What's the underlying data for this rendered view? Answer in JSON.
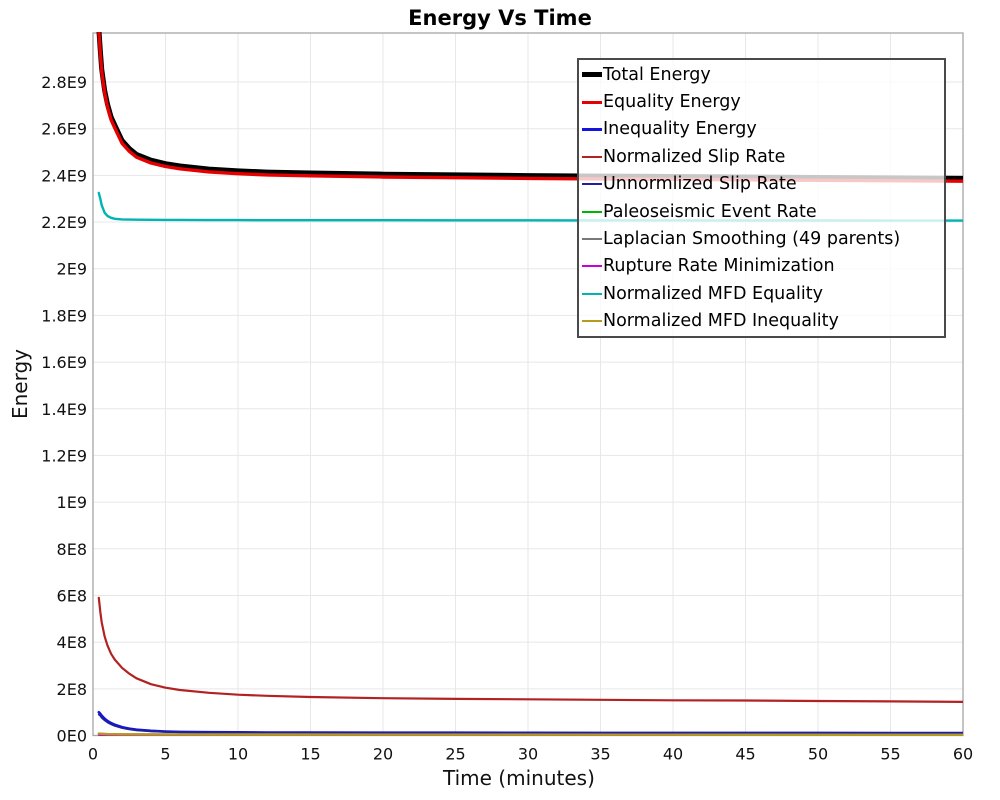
{
  "chart_data": {
    "type": "line",
    "title": "Energy Vs Time",
    "xlabel": "Time (minutes)",
    "ylabel": "Energy",
    "xlim": [
      0,
      60
    ],
    "ylim": [
      0,
      3010000000.0
    ],
    "grid": true,
    "grid_color": "#e7e7e7",
    "frame_color": "#a6a6a6",
    "legend_position": "top-right",
    "legend_border_color": "#4a4a4a",
    "xticks": [
      0,
      5,
      10,
      15,
      20,
      25,
      30,
      35,
      40,
      45,
      50,
      55,
      60
    ],
    "yticks": [
      {
        "v": 0,
        "label": "0E0"
      },
      {
        "v": 200000000.0,
        "label": "2E8"
      },
      {
        "v": 400000000.0,
        "label": "4E8"
      },
      {
        "v": 600000000.0,
        "label": "6E8"
      },
      {
        "v": 800000000.0,
        "label": "8E8"
      },
      {
        "v": 1000000000.0,
        "label": "1E9"
      },
      {
        "v": 1200000000.0,
        "label": "1.2E9"
      },
      {
        "v": 1400000000.0,
        "label": "1.4E9"
      },
      {
        "v": 1600000000.0,
        "label": "1.6E9"
      },
      {
        "v": 1800000000.0,
        "label": "1.8E9"
      },
      {
        "v": 2000000000.0,
        "label": "2E9"
      },
      {
        "v": 2200000000.0,
        "label": "2.2E9"
      },
      {
        "v": 2400000000.0,
        "label": "2.4E9"
      },
      {
        "v": 2600000000.0,
        "label": "2.6E9"
      },
      {
        "v": 2800000000.0,
        "label": "2.8E9"
      }
    ],
    "series": [
      {
        "name": "Total Energy",
        "color": "#000000",
        "lw": 5,
        "x": [
          0.4,
          0.5,
          0.6,
          0.8,
          1,
          1.25,
          1.5,
          2,
          2.5,
          3,
          4,
          5,
          6,
          8,
          10,
          12,
          15,
          20,
          25,
          30,
          35,
          40,
          45,
          50,
          55,
          60
        ],
        "y": [
          3030000000.0,
          2935000000.0,
          2855000000.0,
          2765000000.0,
          2705000000.0,
          2650000000.0,
          2615000000.0,
          2550000000.0,
          2515000000.0,
          2490000000.0,
          2465000000.0,
          2450000000.0,
          2440000000.0,
          2427000000.0,
          2419000000.0,
          2414000000.0,
          2410000000.0,
          2405000000.0,
          2402000000.0,
          2399000000.0,
          2397000000.0,
          2395000000.0,
          2393000000.0,
          2391000000.0,
          2389000000.0,
          2387000000.0
        ]
      },
      {
        "name": "Equality Energy",
        "color": "#e60000",
        "lw": 3.4,
        "x": [
          0.4,
          0.5,
          0.6,
          0.8,
          1,
          1.25,
          1.5,
          2,
          2.5,
          3,
          4,
          5,
          6,
          8,
          10,
          12,
          15,
          20,
          25,
          30,
          35,
          40,
          45,
          50,
          55,
          60
        ],
        "y": [
          3020000000.0,
          2925000000.0,
          2845000000.0,
          2755000000.0,
          2693000000.0,
          2638000000.0,
          2603000000.0,
          2538000000.0,
          2503000000.0,
          2478000000.0,
          2453000000.0,
          2438000000.0,
          2428000000.0,
          2415000000.0,
          2407000000.0,
          2402000000.0,
          2398000000.0,
          2393000000.0,
          2390000000.0,
          2387000000.0,
          2385000000.0,
          2383000000.0,
          2381000000.0,
          2379000000.0,
          2377000000.0,
          2375000000.0
        ]
      },
      {
        "name": "Inequality Energy",
        "color": "#1414dc",
        "lw": 2.6,
        "x": [
          0.4,
          0.5,
          0.6,
          0.8,
          1,
          1.25,
          1.5,
          2,
          2.5,
          3,
          4,
          5,
          6,
          8,
          10,
          12,
          15,
          20,
          25,
          30,
          35,
          40,
          45,
          50,
          55,
          60
        ],
        "y": [
          100000000.0,
          93000000.0,
          85000000.0,
          72000000.0,
          62000000.0,
          53000000.0,
          46000000.0,
          36000000.0,
          29000000.0,
          25000000.0,
          20000000.0,
          17000000.0,
          15500000.0,
          14000000.0,
          13500000.0,
          13000000.0,
          12500000.0,
          12000000.0,
          11800000.0,
          11500000.0,
          11300000.0,
          11200000.0,
          11100000.0,
          11000000.0,
          10900000.0,
          10800000.0
        ]
      },
      {
        "name": "Normalized Slip Rate",
        "color": "#b22222",
        "lw": 2.2,
        "x": [
          0.4,
          0.5,
          0.6,
          0.8,
          1,
          1.25,
          1.5,
          2,
          2.5,
          3,
          4,
          5,
          6,
          8,
          10,
          12,
          15,
          20,
          25,
          30,
          35,
          40,
          45,
          50,
          55,
          60
        ],
        "y": [
          590000000.0,
          530000000.0,
          485000000.0,
          425000000.0,
          385000000.0,
          350000000.0,
          325000000.0,
          290000000.0,
          265000000.0,
          245000000.0,
          220000000.0,
          205000000.0,
          195000000.0,
          183000000.0,
          175000000.0,
          170000000.0,
          165000000.0,
          160000000.0,
          157000000.0,
          155000000.0,
          153000000.0,
          151000000.0,
          150000000.0,
          148000000.0,
          146000000.0,
          144000000.0
        ]
      },
      {
        "name": "Unnormlized Slip Rate",
        "color": "#20209b",
        "lw": 1.8,
        "x": [
          0.4,
          0.5,
          0.6,
          0.8,
          1,
          1.25,
          1.5,
          2,
          2.5,
          3,
          4,
          5,
          6,
          8,
          10,
          12,
          15,
          20,
          25,
          30,
          35,
          40,
          45,
          50,
          55,
          60
        ],
        "y": [
          90000000.0,
          84000000.0,
          76000000.0,
          65000000.0,
          56000000.0,
          48000000.0,
          41000000.0,
          32000000.0,
          26000000.0,
          22000000.0,
          18000000.0,
          15000000.0,
          14000000.0,
          12500000.0,
          12000000.0,
          11500000.0,
          11000000.0,
          10500000.0,
          10300000.0,
          10000000.0,
          9800000.0,
          9700000.0,
          9600000.0,
          9500000.0,
          9400000.0,
          9300000.0
        ]
      },
      {
        "name": "Paleoseismic Event Rate",
        "color": "#00b400",
        "lw": 2,
        "x": [
          0.4,
          60
        ],
        "y": [
          4000000.0,
          3000000.0
        ]
      },
      {
        "name": "Laplacian Smoothing (49 parents)",
        "color": "#787878",
        "lw": 1.8,
        "x": [
          0.4,
          60
        ],
        "y": [
          6000000.0,
          4000000.0
        ]
      },
      {
        "name": "Rupture Rate Minimization",
        "color": "#cc00cc",
        "lw": 1.8,
        "x": [
          0.4,
          60
        ],
        "y": [
          2000000.0,
          2000000.0
        ]
      },
      {
        "name": "Normalized MFD Equality",
        "color": "#00b4b4",
        "lw": 2.4,
        "x": [
          0.4,
          0.5,
          0.6,
          0.8,
          1,
          1.25,
          1.5,
          2,
          2.5,
          3,
          4,
          5,
          6,
          8,
          10,
          12,
          15,
          20,
          25,
          30,
          35,
          40,
          45,
          50,
          55,
          60
        ],
        "y": [
          2325000000.0,
          2300000000.0,
          2272000000.0,
          2240000000.0,
          2226000000.0,
          2218000000.0,
          2214000000.0,
          2211500000.0,
          2210500000.0,
          2210000000.0,
          2209500000.0,
          2209000000.0,
          2209000000.0,
          2208500000.0,
          2208500000.0,
          2208000000.0,
          2208000000.0,
          2208000000.0,
          2207500000.0,
          2207500000.0,
          2207000000.0,
          2207000000.0,
          2206500000.0,
          2206500000.0,
          2206000000.0,
          2206000000.0
        ]
      },
      {
        "name": "Normalized MFD Inequality",
        "color": "#b49b1e",
        "lw": 2.4,
        "x": [
          0.4,
          1,
          2,
          5,
          60
        ],
        "y": [
          8000000.0,
          6000000.0,
          5000000.0,
          4000000.0,
          3000000.0
        ]
      }
    ]
  }
}
